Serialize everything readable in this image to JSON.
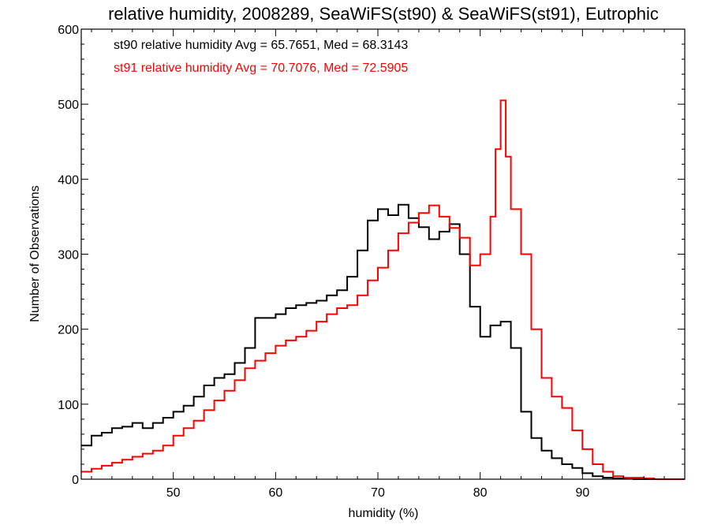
{
  "chart_data": {
    "type": "line",
    "title": "relative humidity, 2008289, SeaWiFS(st90) & SeaWiFS(st91), Eutrophic",
    "xlabel": "humidity (%)",
    "ylabel": "Number of Observations",
    "xlim": [
      41,
      100
    ],
    "ylim": [
      0,
      600
    ],
    "x_ticks": [
      50,
      60,
      70,
      80,
      90
    ],
    "y_ticks": [
      0,
      100,
      200,
      300,
      400,
      500,
      600
    ],
    "grid": false,
    "legend_placement": "top-left",
    "series": [
      {
        "name": "st90 relative humidity Avg = 65.7651, Med = 68.3143",
        "color": "#000000",
        "points": [
          [
            41,
            45
          ],
          [
            42,
            58
          ],
          [
            43,
            62
          ],
          [
            44,
            68
          ],
          [
            45,
            70
          ],
          [
            46,
            75
          ],
          [
            47,
            68
          ],
          [
            48,
            75
          ],
          [
            49,
            82
          ],
          [
            50,
            90
          ],
          [
            51,
            98
          ],
          [
            52,
            110
          ],
          [
            53,
            125
          ],
          [
            54,
            135
          ],
          [
            55,
            140
          ],
          [
            56,
            155
          ],
          [
            57,
            175
          ],
          [
            58,
            215
          ],
          [
            59,
            215
          ],
          [
            60,
            220
          ],
          [
            61,
            228
          ],
          [
            62,
            232
          ],
          [
            63,
            235
          ],
          [
            64,
            238
          ],
          [
            65,
            245
          ],
          [
            66,
            252
          ],
          [
            67,
            270
          ],
          [
            68,
            305
          ],
          [
            69,
            345
          ],
          [
            70,
            360
          ],
          [
            71,
            352
          ],
          [
            72,
            366
          ],
          [
            73,
            348
          ],
          [
            74,
            336
          ],
          [
            75,
            320
          ],
          [
            76,
            330
          ],
          [
            77,
            340
          ],
          [
            78,
            300
          ],
          [
            79,
            230
          ],
          [
            80,
            190
          ],
          [
            81,
            205
          ],
          [
            82,
            210
          ],
          [
            83,
            175
          ],
          [
            84,
            90
          ],
          [
            85,
            55
          ],
          [
            86,
            38
          ],
          [
            87,
            28
          ],
          [
            88,
            20
          ],
          [
            89,
            15
          ],
          [
            90,
            8
          ],
          [
            91,
            4
          ],
          [
            92,
            2
          ],
          [
            93,
            1
          ],
          [
            94,
            1
          ],
          [
            95,
            0
          ],
          [
            96,
            0
          ],
          [
            98,
            0
          ],
          [
            100,
            0
          ]
        ]
      },
      {
        "name": "st91 relative humidity Avg = 70.7076, Med = 72.5905",
        "color": "#ff0000",
        "points": [
          [
            41,
            10
          ],
          [
            42,
            14
          ],
          [
            43,
            18
          ],
          [
            44,
            22
          ],
          [
            45,
            26
          ],
          [
            46,
            30
          ],
          [
            47,
            34
          ],
          [
            48,
            38
          ],
          [
            49,
            45
          ],
          [
            50,
            58
          ],
          [
            51,
            68
          ],
          [
            52,
            78
          ],
          [
            53,
            92
          ],
          [
            54,
            105
          ],
          [
            55,
            118
          ],
          [
            56,
            132
          ],
          [
            57,
            148
          ],
          [
            58,
            158
          ],
          [
            59,
            168
          ],
          [
            60,
            178
          ],
          [
            61,
            185
          ],
          [
            62,
            190
          ],
          [
            63,
            198
          ],
          [
            64,
            210
          ],
          [
            65,
            220
          ],
          [
            66,
            228
          ],
          [
            67,
            232
          ],
          [
            68,
            245
          ],
          [
            69,
            265
          ],
          [
            70,
            282
          ],
          [
            71,
            305
          ],
          [
            72,
            328
          ],
          [
            73,
            342
          ],
          [
            74,
            355
          ],
          [
            75,
            365
          ],
          [
            76,
            350
          ],
          [
            77,
            335
          ],
          [
            78,
            322
          ],
          [
            79,
            285
          ],
          [
            80,
            300
          ],
          [
            81,
            350
          ],
          [
            81.5,
            440
          ],
          [
            82,
            505
          ],
          [
            82.5,
            430
          ],
          [
            83,
            360
          ],
          [
            84,
            300
          ],
          [
            85,
            200
          ],
          [
            86,
            135
          ],
          [
            87,
            110
          ],
          [
            88,
            95
          ],
          [
            89,
            65
          ],
          [
            90,
            40
          ],
          [
            91,
            20
          ],
          [
            92,
            10
          ],
          [
            93,
            4
          ],
          [
            94,
            2
          ],
          [
            95,
            2
          ],
          [
            96,
            1
          ],
          [
            97,
            0
          ],
          [
            98,
            0
          ],
          [
            100,
            0
          ]
        ]
      }
    ]
  }
}
